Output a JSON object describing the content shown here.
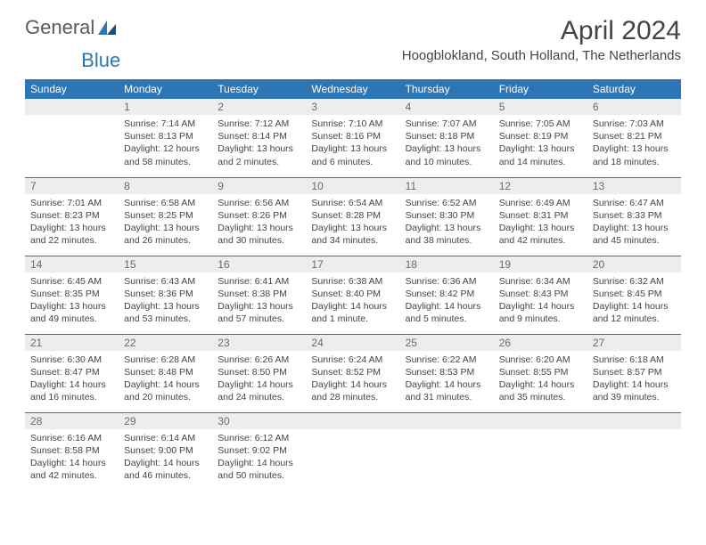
{
  "logo": {
    "text1": "General",
    "text2": "Blue"
  },
  "title": "April 2024",
  "location": "Hoogblokland, South Holland, The Netherlands",
  "colors": {
    "header_bg": "#2e75b6",
    "header_text": "#ffffff",
    "daynum_bg": "#ededed",
    "daynum_text": "#6a6a6a",
    "body_text": "#444444",
    "border": "#2e75b6",
    "page_bg": "#ffffff"
  },
  "day_headers": [
    "Sunday",
    "Monday",
    "Tuesday",
    "Wednesday",
    "Thursday",
    "Friday",
    "Saturday"
  ],
  "weeks": [
    [
      {
        "num": "",
        "sunrise": "",
        "sunset": "",
        "daylight": ""
      },
      {
        "num": "1",
        "sunrise": "Sunrise: 7:14 AM",
        "sunset": "Sunset: 8:13 PM",
        "daylight": "Daylight: 12 hours and 58 minutes."
      },
      {
        "num": "2",
        "sunrise": "Sunrise: 7:12 AM",
        "sunset": "Sunset: 8:14 PM",
        "daylight": "Daylight: 13 hours and 2 minutes."
      },
      {
        "num": "3",
        "sunrise": "Sunrise: 7:10 AM",
        "sunset": "Sunset: 8:16 PM",
        "daylight": "Daylight: 13 hours and 6 minutes."
      },
      {
        "num": "4",
        "sunrise": "Sunrise: 7:07 AM",
        "sunset": "Sunset: 8:18 PM",
        "daylight": "Daylight: 13 hours and 10 minutes."
      },
      {
        "num": "5",
        "sunrise": "Sunrise: 7:05 AM",
        "sunset": "Sunset: 8:19 PM",
        "daylight": "Daylight: 13 hours and 14 minutes."
      },
      {
        "num": "6",
        "sunrise": "Sunrise: 7:03 AM",
        "sunset": "Sunset: 8:21 PM",
        "daylight": "Daylight: 13 hours and 18 minutes."
      }
    ],
    [
      {
        "num": "7",
        "sunrise": "Sunrise: 7:01 AM",
        "sunset": "Sunset: 8:23 PM",
        "daylight": "Daylight: 13 hours and 22 minutes."
      },
      {
        "num": "8",
        "sunrise": "Sunrise: 6:58 AM",
        "sunset": "Sunset: 8:25 PM",
        "daylight": "Daylight: 13 hours and 26 minutes."
      },
      {
        "num": "9",
        "sunrise": "Sunrise: 6:56 AM",
        "sunset": "Sunset: 8:26 PM",
        "daylight": "Daylight: 13 hours and 30 minutes."
      },
      {
        "num": "10",
        "sunrise": "Sunrise: 6:54 AM",
        "sunset": "Sunset: 8:28 PM",
        "daylight": "Daylight: 13 hours and 34 minutes."
      },
      {
        "num": "11",
        "sunrise": "Sunrise: 6:52 AM",
        "sunset": "Sunset: 8:30 PM",
        "daylight": "Daylight: 13 hours and 38 minutes."
      },
      {
        "num": "12",
        "sunrise": "Sunrise: 6:49 AM",
        "sunset": "Sunset: 8:31 PM",
        "daylight": "Daylight: 13 hours and 42 minutes."
      },
      {
        "num": "13",
        "sunrise": "Sunrise: 6:47 AM",
        "sunset": "Sunset: 8:33 PM",
        "daylight": "Daylight: 13 hours and 45 minutes."
      }
    ],
    [
      {
        "num": "14",
        "sunrise": "Sunrise: 6:45 AM",
        "sunset": "Sunset: 8:35 PM",
        "daylight": "Daylight: 13 hours and 49 minutes."
      },
      {
        "num": "15",
        "sunrise": "Sunrise: 6:43 AM",
        "sunset": "Sunset: 8:36 PM",
        "daylight": "Daylight: 13 hours and 53 minutes."
      },
      {
        "num": "16",
        "sunrise": "Sunrise: 6:41 AM",
        "sunset": "Sunset: 8:38 PM",
        "daylight": "Daylight: 13 hours and 57 minutes."
      },
      {
        "num": "17",
        "sunrise": "Sunrise: 6:38 AM",
        "sunset": "Sunset: 8:40 PM",
        "daylight": "Daylight: 14 hours and 1 minute."
      },
      {
        "num": "18",
        "sunrise": "Sunrise: 6:36 AM",
        "sunset": "Sunset: 8:42 PM",
        "daylight": "Daylight: 14 hours and 5 minutes."
      },
      {
        "num": "19",
        "sunrise": "Sunrise: 6:34 AM",
        "sunset": "Sunset: 8:43 PM",
        "daylight": "Daylight: 14 hours and 9 minutes."
      },
      {
        "num": "20",
        "sunrise": "Sunrise: 6:32 AM",
        "sunset": "Sunset: 8:45 PM",
        "daylight": "Daylight: 14 hours and 12 minutes."
      }
    ],
    [
      {
        "num": "21",
        "sunrise": "Sunrise: 6:30 AM",
        "sunset": "Sunset: 8:47 PM",
        "daylight": "Daylight: 14 hours and 16 minutes."
      },
      {
        "num": "22",
        "sunrise": "Sunrise: 6:28 AM",
        "sunset": "Sunset: 8:48 PM",
        "daylight": "Daylight: 14 hours and 20 minutes."
      },
      {
        "num": "23",
        "sunrise": "Sunrise: 6:26 AM",
        "sunset": "Sunset: 8:50 PM",
        "daylight": "Daylight: 14 hours and 24 minutes."
      },
      {
        "num": "24",
        "sunrise": "Sunrise: 6:24 AM",
        "sunset": "Sunset: 8:52 PM",
        "daylight": "Daylight: 14 hours and 28 minutes."
      },
      {
        "num": "25",
        "sunrise": "Sunrise: 6:22 AM",
        "sunset": "Sunset: 8:53 PM",
        "daylight": "Daylight: 14 hours and 31 minutes."
      },
      {
        "num": "26",
        "sunrise": "Sunrise: 6:20 AM",
        "sunset": "Sunset: 8:55 PM",
        "daylight": "Daylight: 14 hours and 35 minutes."
      },
      {
        "num": "27",
        "sunrise": "Sunrise: 6:18 AM",
        "sunset": "Sunset: 8:57 PM",
        "daylight": "Daylight: 14 hours and 39 minutes."
      }
    ],
    [
      {
        "num": "28",
        "sunrise": "Sunrise: 6:16 AM",
        "sunset": "Sunset: 8:58 PM",
        "daylight": "Daylight: 14 hours and 42 minutes."
      },
      {
        "num": "29",
        "sunrise": "Sunrise: 6:14 AM",
        "sunset": "Sunset: 9:00 PM",
        "daylight": "Daylight: 14 hours and 46 minutes."
      },
      {
        "num": "30",
        "sunrise": "Sunrise: 6:12 AM",
        "sunset": "Sunset: 9:02 PM",
        "daylight": "Daylight: 14 hours and 50 minutes."
      },
      {
        "num": "",
        "sunrise": "",
        "sunset": "",
        "daylight": ""
      },
      {
        "num": "",
        "sunrise": "",
        "sunset": "",
        "daylight": ""
      },
      {
        "num": "",
        "sunrise": "",
        "sunset": "",
        "daylight": ""
      },
      {
        "num": "",
        "sunrise": "",
        "sunset": "",
        "daylight": ""
      }
    ]
  ]
}
